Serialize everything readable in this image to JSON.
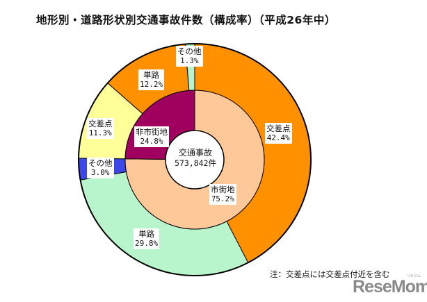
{
  "title": "地形別・道路形状別交通事故件数（構成率）（平成26年中）",
  "center": {
    "label": "交通事故",
    "value": "573,842件"
  },
  "note": "注：交差点には交差点付近を含む",
  "watermark": {
    "text": "ReseMom",
    "small": "リセマム"
  },
  "labels": {
    "urban_intersection": {
      "name": "交差点",
      "pct": "42.4%"
    },
    "urban_single": {
      "name": "単路",
      "pct": "29.8%"
    },
    "urban_other": {
      "name": "その他",
      "pct": "3.0%"
    },
    "rural_intersection": {
      "name": "交差点",
      "pct": "11.3%"
    },
    "rural_single": {
      "name": "単路",
      "pct": "12.2%"
    },
    "rural_other": {
      "name": "その他",
      "pct": "1.3%"
    },
    "urban": {
      "name": "市街地",
      "pct": "75.2%"
    },
    "rural": {
      "name": "非市街地",
      "pct": "24.8%"
    }
  },
  "colors": {
    "orange": "#FF9100",
    "lightgreen": "#B8F5CC",
    "blue": "#3D47E8",
    "yellow": "#FFFF99",
    "magenta": "#A0005E",
    "peach": "#FFC898"
  },
  "chart_data": {
    "type": "pie",
    "subtype": "nested-donut",
    "title": "地形別・道路形状別交通事故件数（構成率）（平成26年中）",
    "center_text": "交通事故 573,842件",
    "inner_ring": {
      "categories": [
        "市街地",
        "非市街地"
      ],
      "values": [
        75.2,
        24.8
      ],
      "colors": [
        "#FFC898",
        "#A0005E"
      ]
    },
    "outer_ring": {
      "categories": [
        "市街地・交差点",
        "市街地・単路",
        "市街地・その他",
        "非市街地・交差点",
        "非市街地・単路",
        "非市街地・その他"
      ],
      "values": [
        42.4,
        29.8,
        3.0,
        11.3,
        12.2,
        1.3
      ],
      "colors": [
        "#FF9100",
        "#B8F5CC",
        "#3D47E8",
        "#FFFF99",
        "#FF9100",
        "#B8F5CC"
      ]
    },
    "units": "%",
    "total": 573842,
    "start_angle": "12 o'clock, clockwise",
    "annotation": "注：交差点には交差点付近を含む"
  }
}
